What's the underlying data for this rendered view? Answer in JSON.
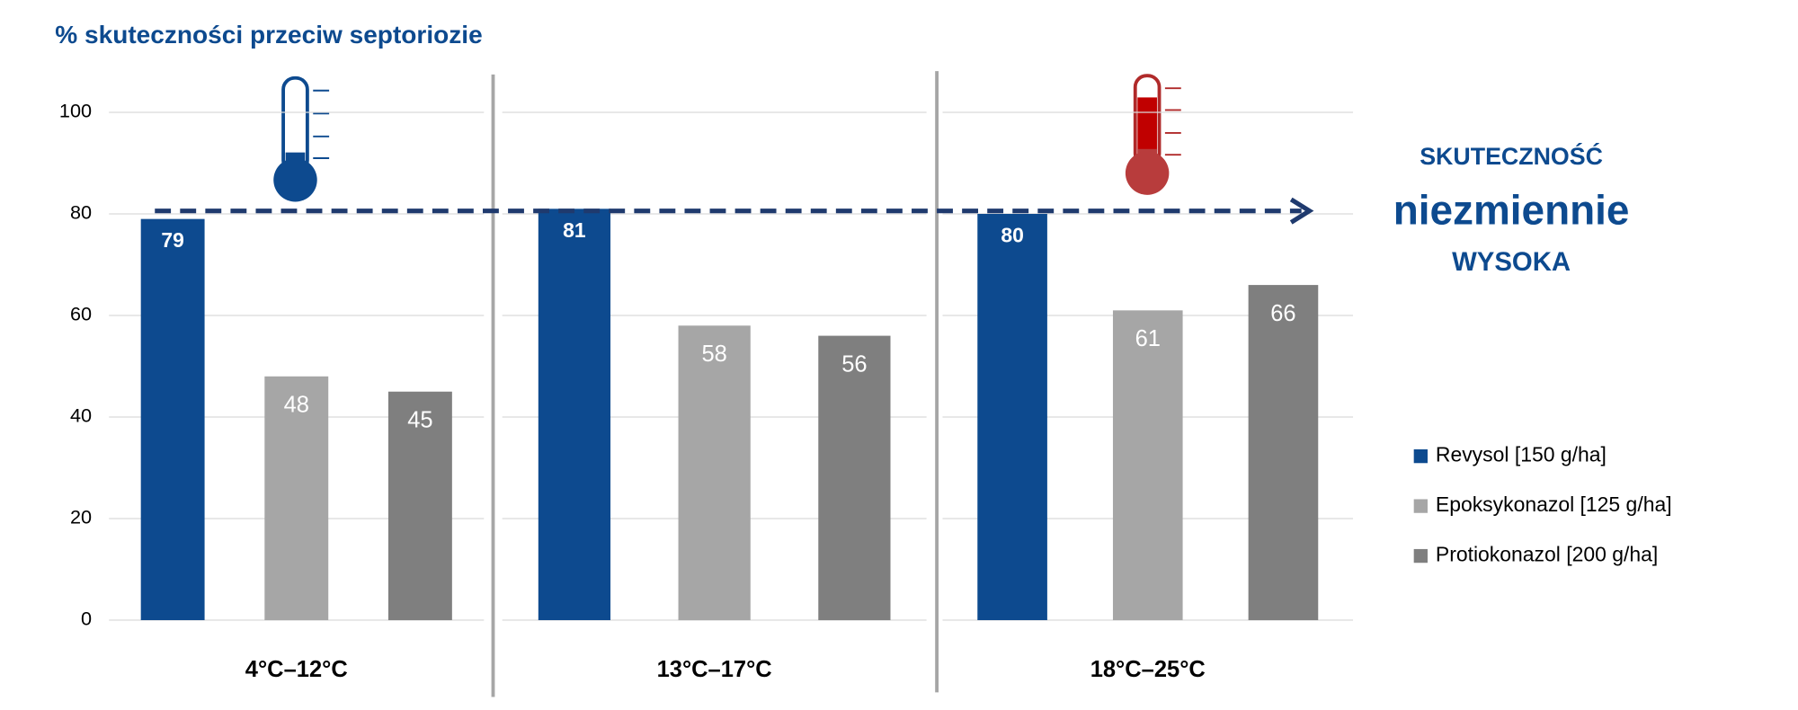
{
  "chart_data": {
    "type": "bar",
    "title": "% skuteczności przeciw septoriozie",
    "categories": [
      "4°C–12°C",
      "13°C–17°C",
      "18°C–25°C"
    ],
    "series": [
      {
        "name": "Revysol [150 g/ha]",
        "color": "#0d4a8f",
        "values": [
          79,
          81,
          80
        ]
      },
      {
        "name": "Epoksykonazol [125 g/ha]",
        "color": "#a6a6a6",
        "values": [
          48,
          58,
          61
        ]
      },
      {
        "name": "Protiokonazol [200 g/ha]",
        "color": "#7f7f7f",
        "values": [
          45,
          56,
          66
        ]
      }
    ],
    "ylim": [
      0,
      100
    ],
    "yticks": [
      0,
      20,
      40,
      60,
      80,
      100
    ],
    "grid": true,
    "legend": "right",
    "annotations": [
      "SKUTECZNOŚĆ",
      "niezmiennie",
      "WYSOKA"
    ]
  }
}
